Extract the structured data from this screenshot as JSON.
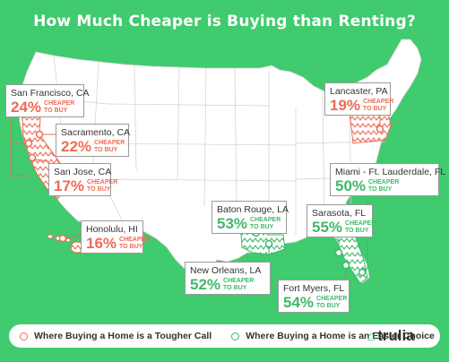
{
  "title": "How Much Cheaper is Buying than Renting?",
  "colors": {
    "background": "#3fcb6e",
    "land": "#ffffff",
    "state_borders": "#cfcfcf",
    "tougher": "#ee6b55",
    "easier": "#3fb96a"
  },
  "callouts": [
    {
      "city": "San Francisco, CA",
      "percent": "24%",
      "label_line1": "CHEAPER",
      "label_line2": "TO BUY",
      "category": "tougher"
    },
    {
      "city": "Sacramento, CA",
      "percent": "22%",
      "label_line1": "CHEAPER",
      "label_line2": "TO BUY",
      "category": "tougher"
    },
    {
      "city": "San Jose, CA",
      "percent": "17%",
      "label_line1": "CHEAPER",
      "label_line2": "TO BUY",
      "category": "tougher"
    },
    {
      "city": "Honolulu, HI",
      "percent": "16%",
      "label_line1": "CHEAPER",
      "label_line2": "TO BUY",
      "category": "tougher"
    },
    {
      "city": "Lancaster, PA",
      "percent": "19%",
      "label_line1": "CHEAPER",
      "label_line2": "TO BUY",
      "category": "tougher"
    },
    {
      "city": "Miami - Ft. Lauderdale, FL",
      "percent": "50%",
      "label_line1": "CHEAPER",
      "label_line2": "TO BUY",
      "category": "easier"
    },
    {
      "city": "Baton Rouge, LA",
      "percent": "53%",
      "label_line1": "CHEAPER",
      "label_line2": "TO BUY",
      "category": "easier"
    },
    {
      "city": "Sarasota, FL",
      "percent": "55%",
      "label_line1": "CHEAPER",
      "label_line2": "TO BUY",
      "category": "easier"
    },
    {
      "city": "New Orleans, LA",
      "percent": "52%",
      "label_line1": "CHEAPER",
      "label_line2": "TO BUY",
      "category": "easier"
    },
    {
      "city": "Fort Myers, FL",
      "percent": "54%",
      "label_line1": "CHEAPER",
      "label_line2": "TO BUY",
      "category": "easier"
    }
  ],
  "legend": {
    "tougher_label": "Where Buying a Home is a Tougher Call",
    "easier_label": "Where Buying a Home is an Easier Choice"
  },
  "logo": {
    "text": "trulia",
    "icon": "trulia-house-icon"
  }
}
